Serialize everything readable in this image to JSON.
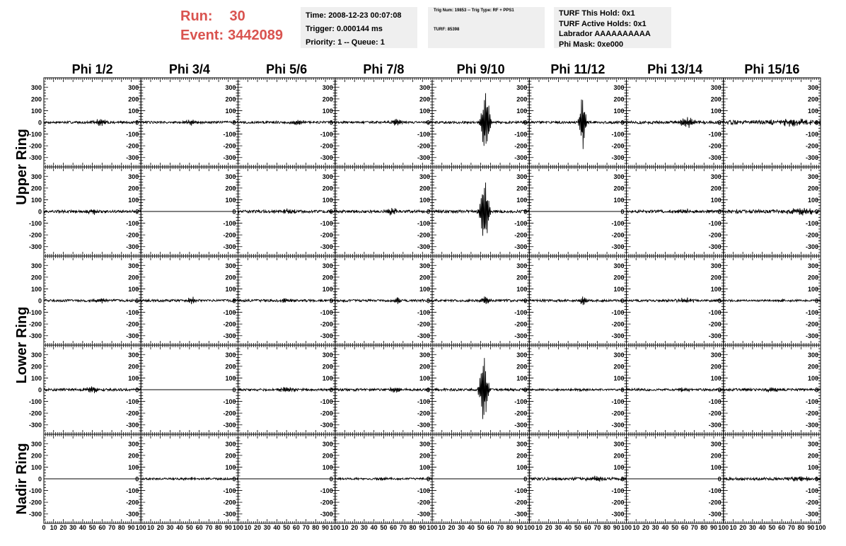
{
  "run_label": "Run:",
  "run_value": "30",
  "event_label": "Event:",
  "event_value": "3442089",
  "info_box_1": [
    "Time: 2008-12-23 00:07:08",
    "Trigger: 0.000144 ms",
    "Priority: 1 -- Queue: 1"
  ],
  "info_box_2": {
    "line1": "Trig Num: 19853 -- Trig Type: RF + PPS1",
    "line2": "TURF: 85398"
  },
  "info_box_3": [
    "TURF This Hold: 0x1",
    "TURF Active Holds: 0x1",
    "Labrador AAAAAAAAAA",
    "Phi Mask: 0xe000"
  ],
  "chart_data": {
    "type": "line",
    "columns": [
      "Phi 1/2",
      "Phi 3/4",
      "Phi 5/6",
      "Phi 7/8",
      "Phi 9/10",
      "Phi 11/12",
      "Phi 13/14",
      "Phi 15/16"
    ],
    "row_groups": [
      {
        "label": "Upper Ring",
        "rows": [
          0,
          1
        ]
      },
      {
        "label": "Lower Ring",
        "rows": [
          2,
          3
        ]
      },
      {
        "label": "Nadir Ring",
        "rows": [
          4
        ]
      }
    ],
    "xlim": [
      0,
      100
    ],
    "x_tick_labels": [
      "0",
      "10",
      "20",
      "30",
      "40",
      "50",
      "60",
      "70",
      "80",
      "90",
      "100"
    ],
    "ylim": [
      -380,
      380
    ],
    "y_tick_labels": [
      "300",
      "200",
      "100",
      "0",
      "-100",
      "-200",
      "-300"
    ],
    "grid": false,
    "waveforms": [
      [
        {
          "noise": 10,
          "peak": 30,
          "center": 58,
          "width": 6
        },
        {
          "noise": 10,
          "peak": 25,
          "center": 52,
          "width": 6
        },
        {
          "noise": 10,
          "peak": 25,
          "center": 62,
          "width": 6
        },
        {
          "noise": 10,
          "peak": 35,
          "center": 64,
          "width": 5
        },
        {
          "noise": 10,
          "peak": 310,
          "center": 55,
          "width": 4
        },
        {
          "noise": 10,
          "peak": 260,
          "center": 55,
          "width": 3
        },
        {
          "noise": 12,
          "peak": 45,
          "center": 62,
          "width": 8
        },
        {
          "noise": 18,
          "peak": 25,
          "center": 70,
          "width": 20
        }
      ],
      [
        {
          "noise": 12,
          "peak": 20,
          "center": 50,
          "width": 8
        },
        {
          "noise": 0,
          "peak": 0,
          "center": 50,
          "width": 8
        },
        {
          "noise": 12,
          "peak": 20,
          "center": 50,
          "width": 8
        },
        {
          "noise": 12,
          "peak": 30,
          "center": 58,
          "width": 6
        },
        {
          "noise": 12,
          "peak": 330,
          "center": 54,
          "width": 4
        },
        {
          "noise": 0,
          "peak": 0,
          "center": 50,
          "width": 8
        },
        {
          "noise": 12,
          "peak": 20,
          "center": 60,
          "width": 8
        },
        {
          "noise": 15,
          "peak": 25,
          "center": 80,
          "width": 15
        }
      ],
      [
        {
          "noise": 10,
          "peak": 25,
          "center": 58,
          "width": 6
        },
        {
          "noise": 10,
          "peak": 30,
          "center": 52,
          "width": 5
        },
        {
          "noise": 10,
          "peak": 20,
          "center": 50,
          "width": 6
        },
        {
          "noise": 10,
          "peak": 40,
          "center": 64,
          "width": 3
        },
        {
          "noise": 10,
          "peak": 45,
          "center": 55,
          "width": 4
        },
        {
          "noise": 10,
          "peak": 45,
          "center": 55,
          "width": 3
        },
        {
          "noise": 10,
          "peak": 20,
          "center": 60,
          "width": 8
        },
        {
          "noise": 8,
          "peak": 10,
          "center": 60,
          "width": 8
        }
      ],
      [
        {
          "noise": 10,
          "peak": 25,
          "center": 50,
          "width": 8
        },
        {
          "noise": 0,
          "peak": 0,
          "center": 50,
          "width": 8
        },
        {
          "noise": 10,
          "peak": 20,
          "center": 50,
          "width": 8
        },
        {
          "noise": 10,
          "peak": 25,
          "center": 62,
          "width": 6
        },
        {
          "noise": 10,
          "peak": 320,
          "center": 53,
          "width": 4
        },
        {
          "noise": 8,
          "peak": 10,
          "center": 50,
          "width": 8
        },
        {
          "noise": 10,
          "peak": 15,
          "center": 60,
          "width": 8
        },
        {
          "noise": 10,
          "peak": 15,
          "center": 50,
          "width": 10
        }
      ],
      [
        {
          "noise": 0,
          "peak": 0,
          "center": 50,
          "width": 8
        },
        {
          "noise": 8,
          "peak": 10,
          "center": 50,
          "width": 8
        },
        {
          "noise": 0,
          "peak": 0,
          "center": 50,
          "width": 8
        },
        {
          "noise": 8,
          "peak": 10,
          "center": 50,
          "width": 8
        },
        {
          "noise": 0,
          "peak": 0,
          "center": 50,
          "width": 8
        },
        {
          "noise": 12,
          "peak": 20,
          "center": 70,
          "width": 10
        },
        {
          "noise": 0,
          "peak": 0,
          "center": 50,
          "width": 8
        },
        {
          "noise": 12,
          "peak": 20,
          "center": 80,
          "width": 10
        }
      ]
    ]
  }
}
